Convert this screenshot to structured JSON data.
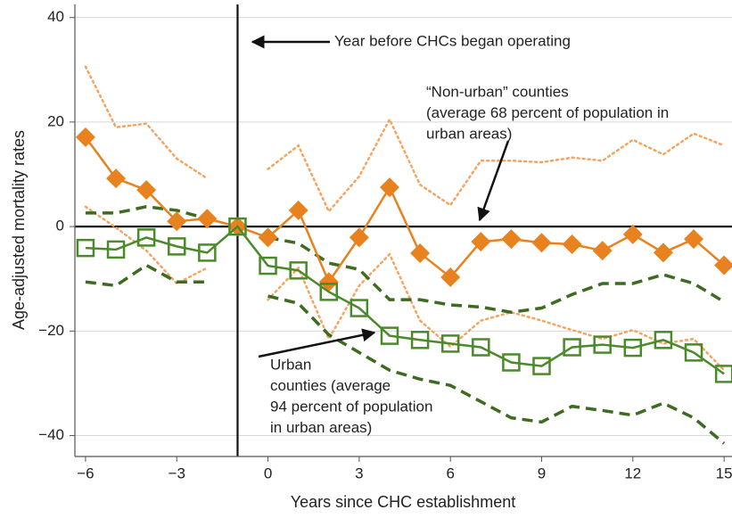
{
  "chart_data": {
    "type": "line",
    "x_label": "Years since CHC establishment",
    "y_label": "Age-adjusted mortality rates",
    "x": [
      -6,
      -5,
      -4,
      -3,
      -2,
      -1,
      0,
      1,
      2,
      3,
      4,
      5,
      6,
      7,
      8,
      9,
      10,
      11,
      12,
      13,
      14,
      15
    ],
    "xlim": [
      -6.35,
      15.26
    ],
    "ylim": [
      -44,
      42.5
    ],
    "xticks": [
      {
        "value": -6,
        "label": "−6"
      },
      {
        "value": -3,
        "label": "−3"
      },
      0,
      3,
      6,
      9,
      12,
      15
    ],
    "yticks": [
      {
        "value": -40,
        "label": "−40"
      },
      {
        "value": -20,
        "label": "−20"
      },
      0,
      20,
      40
    ],
    "grid": true,
    "reference_lines": {
      "x": -1,
      "y": 0
    },
    "series": [
      {
        "color": "#e8821e",
        "marker": "diamond",
        "band_color": "#f4a461",
        "band_style": "dotted",
        "values": [
          17.1,
          9.2,
          7.0,
          1.0,
          1.5,
          0,
          -2.1,
          3.1,
          -10.6,
          -2.1,
          7.5,
          -5.1,
          -9.7,
          -2.9,
          -2.4,
          -3.1,
          -3.4,
          -4.6,
          -1.5,
          -5.0,
          -2.4,
          -7.4
        ],
        "upper": [
          30.6,
          19.0,
          19.7,
          13.0,
          9.2,
          null,
          11.0,
          15.5,
          2.9,
          9.6,
          20.5,
          8.0,
          4.1,
          12.6,
          12.6,
          12.3,
          13.2,
          12.6,
          16.6,
          13.8,
          17.8,
          15.5
        ],
        "lower": [
          3.8,
          -0.2,
          -4.6,
          -10.9,
          -7.9,
          null,
          -14.0,
          -7.9,
          -21.5,
          -11.3,
          -5.3,
          -18.0,
          -23.0,
          -18.0,
          -16.4,
          -18.0,
          -19.8,
          -21.5,
          -19.8,
          -22.4,
          -21.5,
          -27.5
        ]
      },
      {
        "color": "#4a8a2a",
        "marker": "square",
        "band_color": "#3d6b1f",
        "band_style": "dashed",
        "values": [
          -4.1,
          -4.4,
          -2.1,
          -3.8,
          -5.0,
          0,
          -7.5,
          -8.4,
          -12.5,
          -15.6,
          -20.9,
          -21.7,
          -22.4,
          -23.1,
          -26.0,
          -26.7,
          -23.1,
          -22.6,
          -23.2,
          -21.7,
          -24.1,
          -28.2
        ],
        "upper": [
          2.6,
          2.6,
          3.8,
          3.1,
          1.5,
          null,
          -2.1,
          -3.2,
          -7.0,
          -8.2,
          -14.0,
          -14.0,
          -15.0,
          -15.4,
          -16.4,
          -15.6,
          -13.0,
          -10.9,
          -10.9,
          -9.2,
          -10.9,
          -14.4
        ],
        "lower": [
          -10.6,
          -11.3,
          -7.4,
          -10.6,
          -10.6,
          null,
          -13.3,
          -14.7,
          -20.7,
          -24.1,
          -27.5,
          -29.2,
          -30.4,
          -33.5,
          -36.6,
          -37.4,
          -34.4,
          -35.2,
          -36.1,
          -33.8,
          -36.6,
          -41.5
        ]
      }
    ],
    "annotations": [
      {
        "lines": [
          "Year before CHCs began operating"
        ]
      },
      {
        "lines": [
          "“Non-urban” counties",
          "(average 68 percent of population in",
          "urban areas)"
        ]
      },
      {
        "lines": [
          "Urban",
          "counties (average",
          "94 percent of population",
          "in urban areas)"
        ]
      }
    ]
  }
}
